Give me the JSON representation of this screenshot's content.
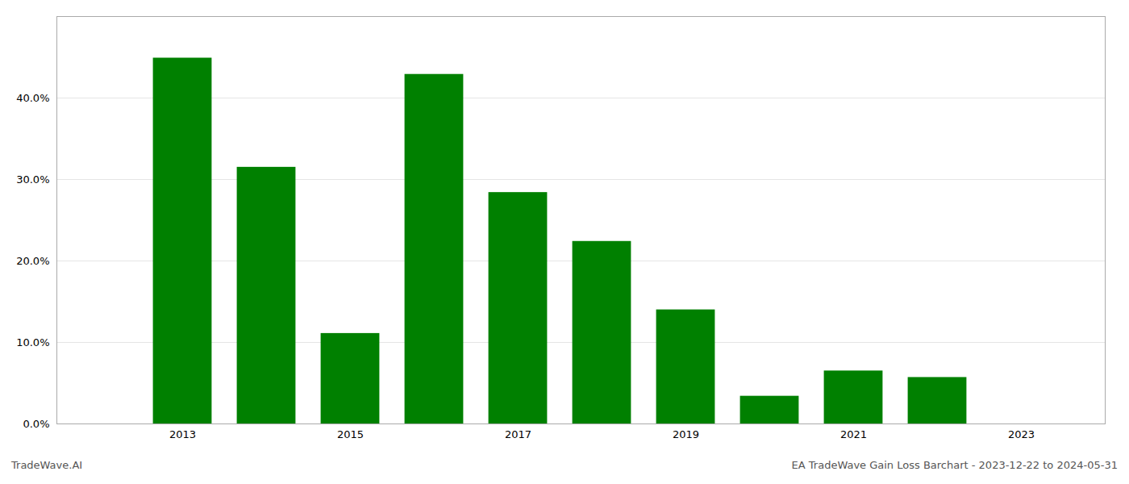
{
  "chart_data": {
    "type": "bar",
    "x": [
      2013,
      2014,
      2015,
      2016,
      2017,
      2018,
      2019,
      2020,
      2021,
      2022
    ],
    "values": [
      0.449,
      0.315,
      0.111,
      0.429,
      0.284,
      0.224,
      0.14,
      0.034,
      0.065,
      0.057
    ],
    "color": "#008000",
    "xlim": [
      2011.5,
      2024.0
    ],
    "xticks": [
      2013,
      2015,
      2017,
      2019,
      2021,
      2023
    ],
    "ylim": [
      0.0,
      0.5
    ],
    "yticks": [
      {
        "value": 0.0,
        "label": "0.0%"
      },
      {
        "value": 0.1,
        "label": "10.0%"
      },
      {
        "value": 0.2,
        "label": "20.0%"
      },
      {
        "value": 0.3,
        "label": "30.0%"
      },
      {
        "value": 0.4,
        "label": "40.0%"
      }
    ],
    "grid": true,
    "annotations": [
      "TradeWave.AI",
      "EA TradeWave Gain Loss Barchart - 2023-12-22 to 2024-05-31"
    ]
  }
}
